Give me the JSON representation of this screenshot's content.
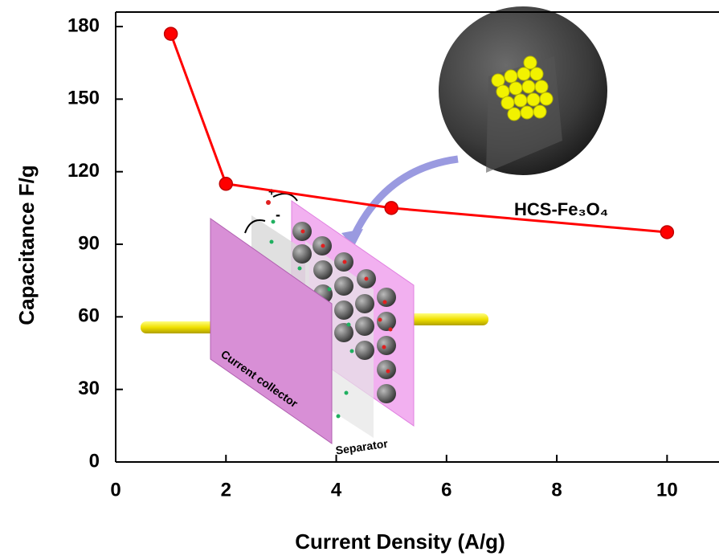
{
  "chart_data": {
    "type": "line",
    "x_label": "Current Density (A/g)",
    "y_label": "Capacitance F/g",
    "x": [
      1,
      2,
      5,
      10
    ],
    "series": [
      {
        "name": "HCS-Fe₃O₄",
        "color": "#ff0000",
        "values": [
          177,
          115,
          105,
          95
        ]
      }
    ],
    "xlim": [
      0,
      11
    ],
    "xticks": [
      0,
      2,
      4,
      6,
      8,
      10
    ],
    "ylim": [
      0,
      186
    ],
    "yticks": [
      0,
      30,
      60,
      90,
      120,
      150,
      180
    ],
    "grid": false,
    "annotations": [
      "Current collector",
      "Separator",
      "+",
      "-"
    ]
  }
}
